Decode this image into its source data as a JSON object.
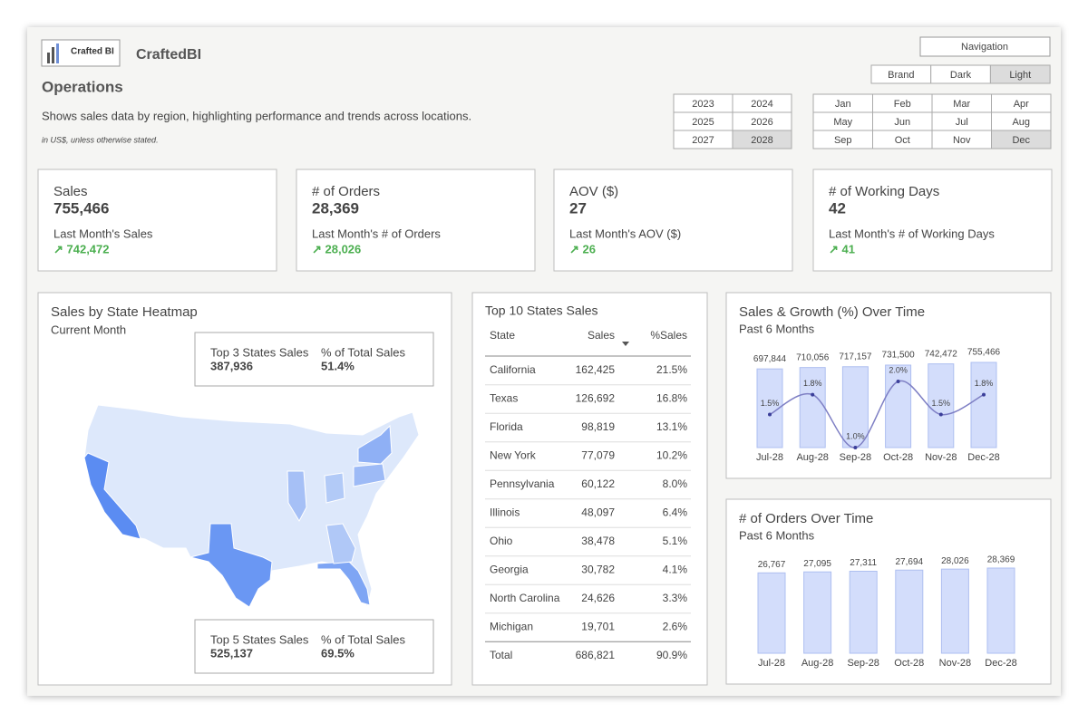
{
  "header": {
    "logo_text": "Crafted BI",
    "brand": "CraftedBI",
    "title": "Operations",
    "description": "Shows sales data by region, highlighting performance and trends across locations.",
    "note": "in US$, unless otherwise stated."
  },
  "controls": {
    "navigation": "Navigation",
    "themes": [
      {
        "label": "Brand",
        "selected": false
      },
      {
        "label": "Dark",
        "selected": false
      },
      {
        "label": "Light",
        "selected": true
      }
    ],
    "years": [
      {
        "label": "2023",
        "selected": false
      },
      {
        "label": "2024",
        "selected": false
      },
      {
        "label": "2025",
        "selected": false
      },
      {
        "label": "2026",
        "selected": false
      },
      {
        "label": "2027",
        "selected": false
      },
      {
        "label": "2028",
        "selected": true
      }
    ],
    "months": [
      {
        "label": "Jan",
        "selected": false
      },
      {
        "label": "Feb",
        "selected": false
      },
      {
        "label": "Mar",
        "selected": false
      },
      {
        "label": "Apr",
        "selected": false
      },
      {
        "label": "May",
        "selected": false
      },
      {
        "label": "Jun",
        "selected": false
      },
      {
        "label": "Jul",
        "selected": false
      },
      {
        "label": "Aug",
        "selected": false
      },
      {
        "label": "Sep",
        "selected": false
      },
      {
        "label": "Oct",
        "selected": false
      },
      {
        "label": "Nov",
        "selected": false
      },
      {
        "label": "Dec",
        "selected": true
      }
    ]
  },
  "kpis": [
    {
      "title": "Sales",
      "value": "755,466",
      "last_label": "Last Month's Sales",
      "last_value": "↗ 742,472"
    },
    {
      "title": "# of Orders",
      "value": "28,369",
      "last_label": "Last Month's # of Orders",
      "last_value": "↗ 28,026"
    },
    {
      "title": "AOV ($)",
      "value": "27",
      "last_label": "Last Month's AOV ($)",
      "last_value": "↗ 26"
    },
    {
      "title": "# of Working Days",
      "value": "42",
      "last_label": "Last Month's # of Working Days",
      "last_value": "↗ 41"
    }
  ],
  "heatmap": {
    "title": "Sales by State Heatmap",
    "subtitle": "Current Month",
    "top3": {
      "label": "Top 3 States Sales",
      "value": "387,936",
      "share_label": "% of Total Sales",
      "share": "51.4%"
    },
    "top5": {
      "label": "Top 5 States Sales",
      "value": "525,137",
      "share_label": "% of Total Sales",
      "share": "69.5%"
    }
  },
  "table": {
    "title": "Top 10 States Sales",
    "columns": [
      "State",
      "Sales",
      "%Sales"
    ],
    "rows": [
      [
        "California",
        "162,425",
        "21.5%"
      ],
      [
        "Texas",
        "126,692",
        "16.8%"
      ],
      [
        "Florida",
        "98,819",
        "13.1%"
      ],
      [
        "New York",
        "77,079",
        "10.2%"
      ],
      [
        "Pennsylvania",
        "60,122",
        "8.0%"
      ],
      [
        "Illinois",
        "48,097",
        "6.4%"
      ],
      [
        "Ohio",
        "38,478",
        "5.1%"
      ],
      [
        "Georgia",
        "30,782",
        "4.1%"
      ],
      [
        "North Carolina",
        "24,626",
        "3.3%"
      ],
      [
        "Michigan",
        "19,701",
        "2.6%"
      ]
    ],
    "total": [
      "Total",
      "686,821",
      "90.9%"
    ]
  },
  "sales_chart": {
    "type": "bar",
    "title": "Sales & Growth (%) Over Time",
    "subtitle": "Past 6 Months",
    "categories": [
      "Jul-28",
      "Aug-28",
      "Sep-28",
      "Oct-28",
      "Nov-28",
      "Dec-28"
    ],
    "sales": {
      "color": "#d3ddfb",
      "values": [
        697844,
        710056,
        717157,
        731500,
        742472,
        755466
      ],
      "value_labels": [
        "697,844",
        "710,056",
        "717,157",
        "731,500",
        "742,472",
        "755,466"
      ]
    },
    "growth": {
      "color": "#7e7fc4",
      "values": [
        1.5,
        1.8,
        1.0,
        2.0,
        1.5,
        1.8
      ],
      "value_labels": [
        "1.5%",
        "1.8%",
        "1.0%",
        "2.0%",
        "1.5%",
        "1.8%"
      ]
    }
  },
  "orders_chart": {
    "type": "bar",
    "title": "# of Orders Over Time",
    "subtitle": "Past 6 Months",
    "categories": [
      "Jul-28",
      "Aug-28",
      "Sep-28",
      "Oct-28",
      "Nov-28",
      "Dec-28"
    ],
    "color": "#d3ddfb",
    "values": [
      26767,
      27095,
      27311,
      27694,
      28026,
      28369
    ],
    "value_labels": [
      "26,767",
      "27,095",
      "27,311",
      "27,694",
      "28,026",
      "28,369"
    ]
  }
}
